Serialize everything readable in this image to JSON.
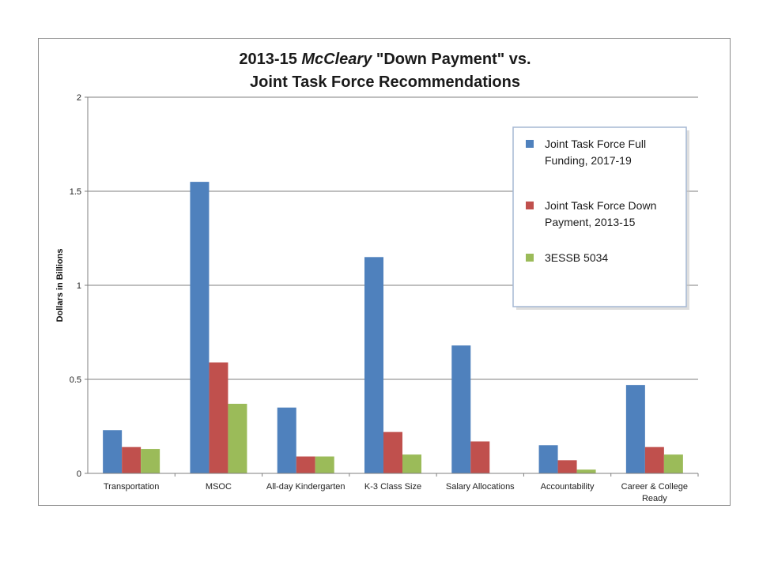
{
  "chart_data": {
    "type": "bar",
    "title_line1_prefix": "2013-15 ",
    "title_line1_italic": "McCleary",
    "title_line1_suffix": " \"Down Payment\" vs.",
    "title_line2": "Joint Task Force Recommendations",
    "ylabel": "Dollars in Billions",
    "xlabel": "",
    "ylim": [
      0,
      2
    ],
    "yticks": [
      "0",
      "0.5",
      "1",
      "1.5",
      "2"
    ],
    "ytick_values": [
      0,
      0.5,
      1,
      1.5,
      2
    ],
    "grid": true,
    "legend_position": "top-right",
    "categories": [
      [
        "Transportation"
      ],
      [
        "MSOC"
      ],
      [
        "All-day Kindergarten"
      ],
      [
        "K-3 Class Size"
      ],
      [
        "Salary Allocations"
      ],
      [
        "Accountability"
      ],
      [
        "Career & College",
        "Ready"
      ]
    ],
    "series": [
      {
        "name_lines": [
          "Joint Task Force Full",
          "Funding, 2017-19"
        ],
        "color": "#4f81bd",
        "values": [
          0.23,
          1.55,
          0.35,
          1.15,
          0.68,
          0.15,
          0.47
        ]
      },
      {
        "name_lines": [
          "Joint Task Force Down",
          "Payment, 2013-15"
        ],
        "color": "#c0504d",
        "values": [
          0.14,
          0.59,
          0.09,
          0.22,
          0.17,
          0.07,
          0.14
        ]
      },
      {
        "name_lines": [
          "3ESSB 5034"
        ],
        "color": "#9bbb59",
        "values": [
          0.13,
          0.37,
          0.09,
          0.1,
          0.0,
          0.02,
          0.1
        ]
      }
    ]
  }
}
